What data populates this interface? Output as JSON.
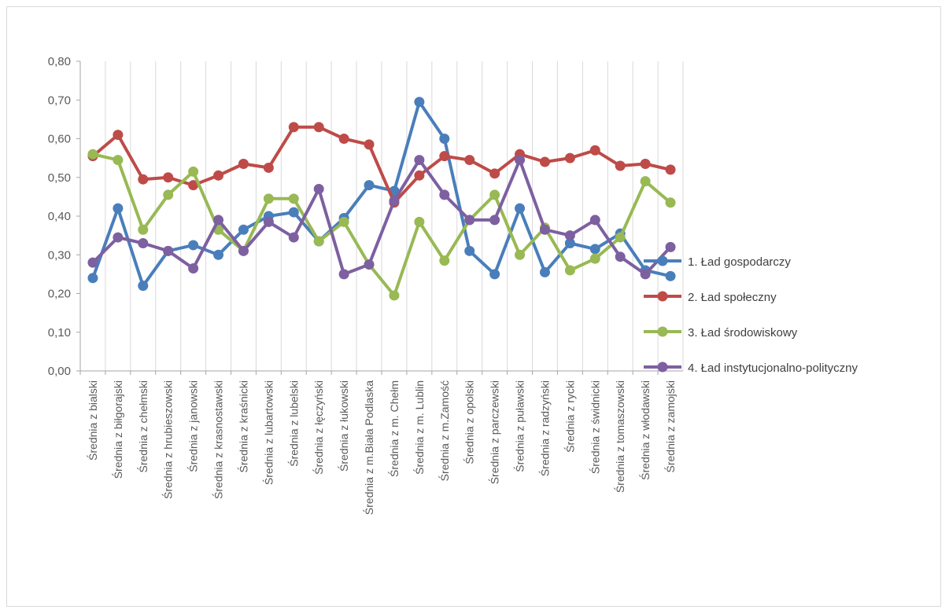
{
  "chart_data": {
    "type": "line",
    "title": "",
    "xlabel": "",
    "ylabel": "",
    "ylim": [
      0,
      0.8
    ],
    "yticks": [
      "0,00",
      "0,10",
      "0,20",
      "0,30",
      "0,40",
      "0,50",
      "0,60",
      "0,70",
      "0,80"
    ],
    "grid": "vertical",
    "legend_position": "right",
    "categories": [
      "Średnia z bialski",
      "Średnia z biłgorajski",
      "Średnia z chełmski",
      "Średnia z hrubieszowski",
      "Średnia z janowski",
      "Średnia z krasnostawski",
      "Średnia z kraśnicki",
      "Średnia z lubartowski",
      "Średnia z lubelski",
      "Średnia z łęczyński",
      "Średnia z łukowski",
      "Średnia z m.Biała Podlaska",
      "Średnia z m. Chełm",
      "Średnia z m. Lublin",
      "Średnia z m.Zamość",
      "Średnia z opolski",
      "Średnia z parczewski",
      "Średnia z puławski",
      "Średnia z radzyński",
      "Średnia z rycki",
      "Średnia z świdnicki",
      "Średnia z tomaszowski",
      "Średnia z włodawski",
      "Średnia z zamojski"
    ],
    "series": [
      {
        "name": "1. Ład gospodarczy",
        "color": "#4a7ebb",
        "values": [
          0.24,
          0.42,
          0.22,
          0.31,
          0.325,
          0.3,
          0.365,
          0.4,
          0.41,
          0.335,
          0.395,
          0.48,
          0.465,
          0.695,
          0.6,
          0.31,
          0.25,
          0.42,
          0.255,
          0.33,
          0.315,
          0.355,
          0.26,
          0.245
        ]
      },
      {
        "name": "2. Ład społeczny",
        "color": "#be4b48",
        "values": [
          0.555,
          0.61,
          0.495,
          0.5,
          0.48,
          0.505,
          0.535,
          0.525,
          0.63,
          0.63,
          0.6,
          0.585,
          0.435,
          0.505,
          0.555,
          0.545,
          0.51,
          0.56,
          0.54,
          0.55,
          0.57,
          0.53,
          0.535,
          0.52
        ]
      },
      {
        "name": "3. Ład środowiskowy",
        "color": "#98b954",
        "values": [
          0.56,
          0.545,
          0.365,
          0.455,
          0.515,
          0.365,
          0.31,
          0.445,
          0.445,
          0.335,
          0.385,
          0.275,
          0.195,
          0.385,
          0.285,
          0.39,
          0.455,
          0.3,
          0.37,
          0.26,
          0.29,
          0.345,
          0.49,
          0.435
        ]
      },
      {
        "name": "4. Ład instytucjonalno-polityczny",
        "color": "#7d60a0",
        "values": [
          0.28,
          0.345,
          0.33,
          0.31,
          0.265,
          0.39,
          0.31,
          0.385,
          0.345,
          0.47,
          0.25,
          0.275,
          0.44,
          0.545,
          0.455,
          0.39,
          0.39,
          0.545,
          0.365,
          0.35,
          0.39,
          0.295,
          0.25,
          0.32
        ]
      }
    ]
  }
}
